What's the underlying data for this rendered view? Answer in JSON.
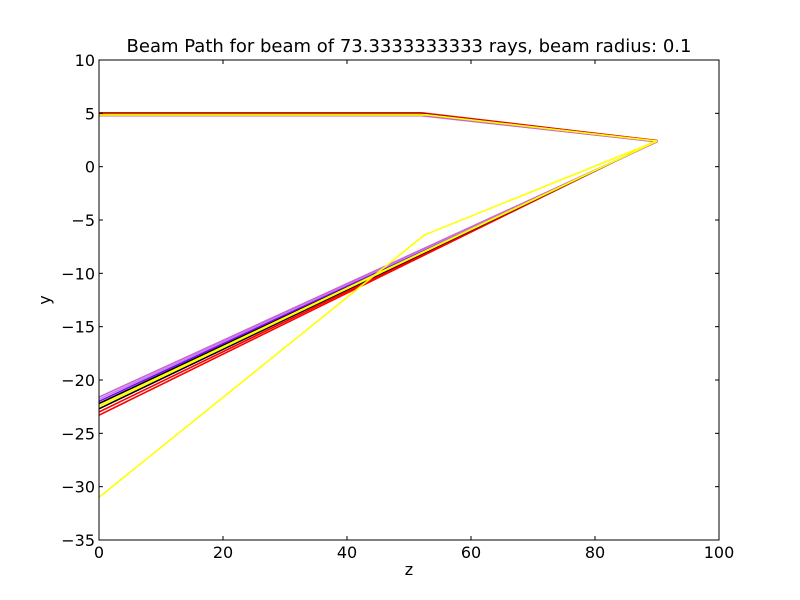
{
  "chart_data": {
    "type": "line",
    "title": "Beam Path for beam of 73.3333333333 rays, beam radius: 0.1",
    "xlabel": "z",
    "ylabel": "y",
    "xlim": [
      0,
      100
    ],
    "ylim": [
      -35,
      10
    ],
    "x_ticks": [
      "0",
      "20",
      "40",
      "60",
      "80",
      "100"
    ],
    "y_ticks": [
      "10",
      "5",
      "0",
      "−5",
      "−10",
      "−15",
      "−20",
      "−25",
      "−30",
      "−35"
    ],
    "grid": false,
    "legend": "none",
    "series": [
      {
        "color": "#ff0000",
        "x": [
          0,
          52,
          90,
          0
        ],
        "y": [
          5.05,
          5.05,
          2.45,
          -23.3
        ]
      },
      {
        "color": "#ff0000",
        "x": [
          0,
          52,
          90,
          0
        ],
        "y": [
          5.0,
          5.0,
          2.42,
          -23.0
        ]
      },
      {
        "color": "#000000",
        "x": [
          0,
          52,
          90,
          0
        ],
        "y": [
          4.95,
          4.95,
          2.4,
          -22.7
        ]
      },
      {
        "color": "#ffff00",
        "x": [
          0,
          52,
          90,
          0
        ],
        "y": [
          4.9,
          4.9,
          2.38,
          -22.5
        ]
      },
      {
        "color": "#000000",
        "x": [
          0,
          52,
          90,
          0
        ],
        "y": [
          4.85,
          4.85,
          2.36,
          -22.2
        ]
      },
      {
        "color": "#7f00ff",
        "x": [
          0,
          52,
          90,
          0
        ],
        "y": [
          4.82,
          4.82,
          2.35,
          -22.0
        ]
      },
      {
        "color": "#bf7fff",
        "x": [
          0,
          52,
          90,
          0
        ],
        "y": [
          4.8,
          4.8,
          2.34,
          -21.8
        ]
      },
      {
        "color": "#cc66cc",
        "x": [
          0,
          52,
          90,
          0
        ],
        "y": [
          4.78,
          4.78,
          2.33,
          -21.6
        ]
      },
      {
        "color": "#ffff00",
        "x": [
          0,
          53,
          90,
          0
        ],
        "y": [
          4.85,
          4.85,
          2.4,
          -22.4
        ]
      },
      {
        "color": "#ffff00",
        "x": [
          0,
          52.5,
          90
        ],
        "y": [
          -31,
          -6.4,
          2.4
        ]
      }
    ]
  }
}
